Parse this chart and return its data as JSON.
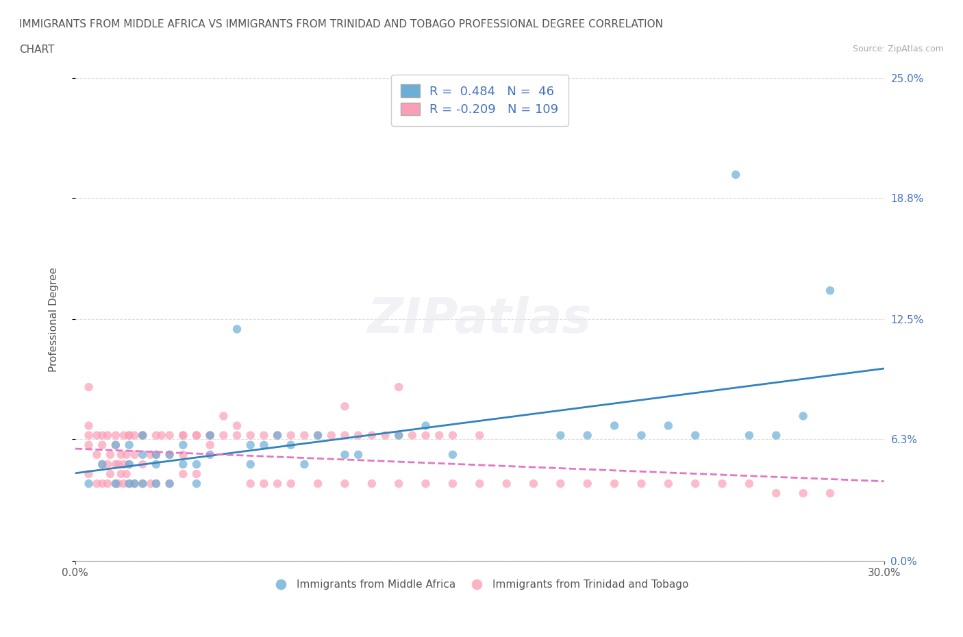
{
  "title_line1": "IMMIGRANTS FROM MIDDLE AFRICA VS IMMIGRANTS FROM TRINIDAD AND TOBAGO PROFESSIONAL DEGREE CORRELATION",
  "title_line2": "CHART",
  "source": "Source: ZipAtlas.com",
  "ylabel": "Professional Degree",
  "xlabel": "",
  "xlim": [
    0.0,
    0.3
  ],
  "ylim": [
    0.0,
    0.25
  ],
  "xtick_labels": [
    "0.0%",
    "30.0%"
  ],
  "ytick_labels": [
    "0.0%",
    "6.3%",
    "12.5%",
    "18.8%",
    "25.0%"
  ],
  "ytick_values": [
    0.0,
    0.063,
    0.125,
    0.188,
    0.25
  ],
  "r_blue": 0.484,
  "n_blue": 46,
  "r_pink": -0.209,
  "n_pink": 109,
  "legend_label_blue": "Immigrants from Middle Africa",
  "legend_label_pink": "Immigrants from Trinidad and Tobago",
  "watermark": "ZIPatlas",
  "color_blue": "#6baed6",
  "color_pink": "#fa9fb5",
  "line_color_blue": "#3182bd",
  "line_color_pink": "#e377c2",
  "title_color": "#555555",
  "axis_label_color": "#555555",
  "tick_color_right": "#4472c4",
  "background_color": "#ffffff",
  "grid_color": "#dddddd",
  "blue_scatter_x": [
    0.005,
    0.01,
    0.015,
    0.015,
    0.02,
    0.02,
    0.02,
    0.022,
    0.025,
    0.025,
    0.025,
    0.03,
    0.03,
    0.03,
    0.035,
    0.035,
    0.04,
    0.04,
    0.045,
    0.045,
    0.05,
    0.05,
    0.06,
    0.065,
    0.065,
    0.07,
    0.075,
    0.08,
    0.085,
    0.09,
    0.1,
    0.105,
    0.12,
    0.13,
    0.14,
    0.18,
    0.19,
    0.2,
    0.21,
    0.22,
    0.23,
    0.245,
    0.25,
    0.26,
    0.27,
    0.28
  ],
  "blue_scatter_y": [
    0.04,
    0.05,
    0.04,
    0.06,
    0.04,
    0.05,
    0.06,
    0.04,
    0.04,
    0.055,
    0.065,
    0.04,
    0.05,
    0.055,
    0.04,
    0.055,
    0.05,
    0.06,
    0.04,
    0.05,
    0.055,
    0.065,
    0.12,
    0.05,
    0.06,
    0.06,
    0.065,
    0.06,
    0.05,
    0.065,
    0.055,
    0.055,
    0.065,
    0.07,
    0.055,
    0.065,
    0.065,
    0.07,
    0.065,
    0.07,
    0.065,
    0.2,
    0.065,
    0.065,
    0.075,
    0.14
  ],
  "pink_scatter_x": [
    0.005,
    0.005,
    0.005,
    0.008,
    0.008,
    0.01,
    0.01,
    0.01,
    0.012,
    0.012,
    0.013,
    0.013,
    0.015,
    0.015,
    0.015,
    0.016,
    0.016,
    0.017,
    0.017,
    0.018,
    0.018,
    0.019,
    0.019,
    0.02,
    0.02,
    0.02,
    0.022,
    0.022,
    0.025,
    0.025,
    0.025,
    0.028,
    0.028,
    0.03,
    0.03,
    0.032,
    0.035,
    0.035,
    0.04,
    0.04,
    0.04,
    0.045,
    0.045,
    0.05,
    0.055,
    0.06,
    0.065,
    0.07,
    0.075,
    0.08,
    0.09,
    0.1,
    0.11,
    0.12,
    0.13,
    0.14,
    0.15,
    0.16,
    0.17,
    0.18,
    0.19,
    0.2,
    0.21,
    0.22,
    0.23,
    0.24,
    0.25,
    0.26,
    0.27,
    0.28,
    0.1,
    0.12,
    0.005,
    0.005,
    0.008,
    0.01,
    0.012,
    0.015,
    0.018,
    0.02,
    0.022,
    0.025,
    0.03,
    0.035,
    0.04,
    0.045,
    0.05,
    0.06,
    0.07,
    0.08,
    0.09,
    0.1,
    0.11,
    0.12,
    0.13,
    0.14,
    0.15,
    0.05,
    0.055,
    0.065,
    0.075,
    0.085,
    0.095,
    0.105,
    0.115,
    0.125,
    0.135
  ],
  "pink_scatter_y": [
    0.09,
    0.06,
    0.045,
    0.055,
    0.04,
    0.05,
    0.06,
    0.04,
    0.05,
    0.04,
    0.045,
    0.055,
    0.04,
    0.05,
    0.06,
    0.04,
    0.05,
    0.045,
    0.055,
    0.04,
    0.05,
    0.045,
    0.055,
    0.04,
    0.05,
    0.065,
    0.04,
    0.055,
    0.04,
    0.05,
    0.065,
    0.04,
    0.055,
    0.04,
    0.055,
    0.065,
    0.04,
    0.055,
    0.045,
    0.055,
    0.065,
    0.045,
    0.065,
    0.06,
    0.075,
    0.07,
    0.04,
    0.04,
    0.04,
    0.04,
    0.04,
    0.04,
    0.04,
    0.04,
    0.04,
    0.04,
    0.04,
    0.04,
    0.04,
    0.04,
    0.04,
    0.04,
    0.04,
    0.04,
    0.04,
    0.04,
    0.04,
    0.035,
    0.035,
    0.035,
    0.08,
    0.09,
    0.07,
    0.065,
    0.065,
    0.065,
    0.065,
    0.065,
    0.065,
    0.065,
    0.065,
    0.065,
    0.065,
    0.065,
    0.065,
    0.065,
    0.065,
    0.065,
    0.065,
    0.065,
    0.065,
    0.065,
    0.065,
    0.065,
    0.065,
    0.065,
    0.065,
    0.065,
    0.065,
    0.065,
    0.065,
    0.065,
    0.065,
    0.065,
    0.065,
    0.065,
    0.065
  ]
}
